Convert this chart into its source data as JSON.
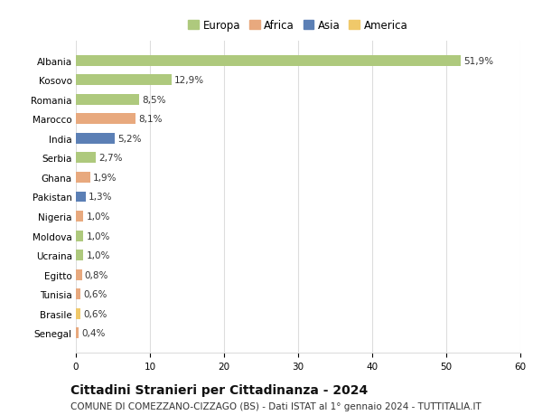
{
  "countries": [
    "Albania",
    "Kosovo",
    "Romania",
    "Marocco",
    "India",
    "Serbia",
    "Ghana",
    "Pakistan",
    "Nigeria",
    "Moldova",
    "Ucraina",
    "Egitto",
    "Tunisia",
    "Brasile",
    "Senegal"
  ],
  "values": [
    51.9,
    12.9,
    8.5,
    8.1,
    5.2,
    2.7,
    1.9,
    1.3,
    1.0,
    1.0,
    1.0,
    0.8,
    0.6,
    0.6,
    0.4
  ],
  "labels": [
    "51,9%",
    "12,9%",
    "8,5%",
    "8,1%",
    "5,2%",
    "2,7%",
    "1,9%",
    "1,3%",
    "1,0%",
    "1,0%",
    "1,0%",
    "0,8%",
    "0,6%",
    "0,6%",
    "0,4%"
  ],
  "colors": [
    "#aec97d",
    "#aec97d",
    "#aec97d",
    "#e8a97e",
    "#5b7fb5",
    "#aec97d",
    "#e8a97e",
    "#5b7fb5",
    "#e8a97e",
    "#aec97d",
    "#aec97d",
    "#e8a97e",
    "#e8a97e",
    "#f0c96a",
    "#e8a97e"
  ],
  "legend_labels": [
    "Europa",
    "Africa",
    "Asia",
    "America"
  ],
  "legend_colors": [
    "#aec97d",
    "#e8a97e",
    "#5b7fb5",
    "#f0c96a"
  ],
  "title": "Cittadini Stranieri per Cittadinanza - 2024",
  "subtitle": "COMUNE DI COMEZZANO-CIZZAGO (BS) - Dati ISTAT al 1° gennaio 2024 - TUTTITALIA.IT",
  "xlim": [
    0,
    60
  ],
  "xticks": [
    0,
    10,
    20,
    30,
    40,
    50,
    60
  ],
  "bg_color": "#ffffff",
  "grid_color": "#dddddd",
  "bar_height": 0.55,
  "title_fontsize": 10,
  "subtitle_fontsize": 7.5,
  "tick_fontsize": 7.5,
  "label_fontsize": 7.5,
  "legend_fontsize": 8.5
}
